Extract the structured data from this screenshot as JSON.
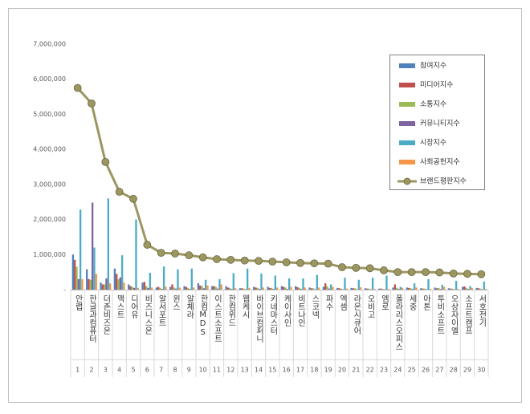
{
  "chart_data": {
    "type": "bar",
    "categories": [
      "안랩",
      "한글과컴퓨터",
      "더존비즈온",
      "맥스트",
      "디어유",
      "비즈니스온",
      "알서포트",
      "윈스",
      "알체라",
      "한컴MDS",
      "이스트소프트",
      "한컴위드",
      "웹케시",
      "바이브컴퍼니",
      "키네마스터",
      "케이사인",
      "비트나인",
      "스코넥",
      "파수",
      "엑셈",
      "라온시큐어",
      "오비고",
      "엠로",
      "폴라리스오피스",
      "세중",
      "아톤",
      "투비소프트",
      "오상자이엘",
      "소프트캠프",
      "서호전기"
    ],
    "ranks": [
      1,
      2,
      3,
      4,
      5,
      6,
      7,
      8,
      9,
      10,
      11,
      12,
      13,
      14,
      15,
      16,
      17,
      18,
      19,
      20,
      21,
      22,
      23,
      24,
      25,
      26,
      27,
      28,
      29,
      30
    ],
    "series": [
      {
        "name": "참여지수",
        "color": "#4f81bd",
        "values": [
          1000000,
          580000,
          200000,
          600000,
          150000,
          200000,
          60000,
          80000,
          100000,
          180000,
          100000,
          100000,
          40000,
          80000,
          80000,
          100000,
          100000,
          60000,
          80000,
          50000,
          50000,
          40000,
          30000,
          60000,
          60000,
          40000,
          60000,
          40000,
          80000,
          50000
        ]
      },
      {
        "name": "미디어지수",
        "color": "#c0504d",
        "values": [
          850000,
          300000,
          150000,
          450000,
          100000,
          220000,
          80000,
          150000,
          80000,
          120000,
          100000,
          60000,
          40000,
          60000,
          50000,
          80000,
          70000,
          40000,
          180000,
          40000,
          40000,
          30000,
          30000,
          150000,
          50000,
          30000,
          40000,
          30000,
          90000,
          40000
        ]
      },
      {
        "name": "소통지수",
        "color": "#9bbb59",
        "values": [
          650000,
          280000,
          150000,
          300000,
          80000,
          100000,
          50000,
          60000,
          50000,
          100000,
          80000,
          50000,
          30000,
          50000,
          50000,
          60000,
          50000,
          40000,
          100000,
          30000,
          40000,
          30000,
          20000,
          50000,
          40000,
          30000,
          50000,
          30000,
          50000,
          30000
        ]
      },
      {
        "name": "커뮤니티지수",
        "color": "#8064a2",
        "values": [
          300000,
          2480000,
          320000,
          350000,
          50000,
          50000,
          20000,
          30000,
          20000,
          40000,
          30000,
          20000,
          10000,
          20000,
          20000,
          20000,
          20000,
          10000,
          30000,
          10000,
          10000,
          10000,
          10000,
          20000,
          20000,
          10000,
          20000,
          10000,
          20000,
          10000
        ]
      },
      {
        "name": "시장지수",
        "color": "#4bacc6",
        "values": [
          2280000,
          1200000,
          2600000,
          980000,
          2000000,
          480000,
          660000,
          580000,
          600000,
          280000,
          300000,
          470000,
          600000,
          460000,
          400000,
          320000,
          320000,
          420000,
          150000,
          340000,
          280000,
          340000,
          400000,
          80000,
          180000,
          300000,
          140000,
          250000,
          100000,
          230000
        ]
      },
      {
        "name": "사회공헌지수",
        "color": "#f79646",
        "values": [
          300000,
          450000,
          180000,
          200000,
          50000,
          60000,
          80000,
          60000,
          60000,
          120000,
          150000,
          40000,
          50000,
          60000,
          60000,
          80000,
          60000,
          60000,
          80000,
          30000,
          70000,
          20000,
          20000,
          50000,
          60000,
          20000,
          80000,
          20000,
          50000,
          20000
        ]
      },
      {
        "name": "브랜드평판지수",
        "color": "#9c9661",
        "type": "line",
        "values": [
          5750000,
          5310000,
          3640000,
          2790000,
          2590000,
          1280000,
          1050000,
          1030000,
          980000,
          920000,
          870000,
          850000,
          830000,
          820000,
          800000,
          780000,
          760000,
          750000,
          740000,
          640000,
          620000,
          610000,
          550000,
          500000,
          500000,
          500000,
          490000,
          460000,
          450000,
          440000
        ]
      }
    ],
    "ylim": [
      0,
      7000000
    ],
    "yticks": [
      {
        "value": 0,
        "label": "-"
      },
      {
        "value": 1000000,
        "label": "1,000,000"
      },
      {
        "value": 2000000,
        "label": "2,000,000"
      },
      {
        "value": 3000000,
        "label": "3,000,000"
      },
      {
        "value": 4000000,
        "label": "4,000,000"
      },
      {
        "value": 5000000,
        "label": "5,000,000"
      },
      {
        "value": 6000000,
        "label": "6,000,000"
      },
      {
        "value": 7000000,
        "label": "7,000,000"
      }
    ],
    "grid": false
  }
}
